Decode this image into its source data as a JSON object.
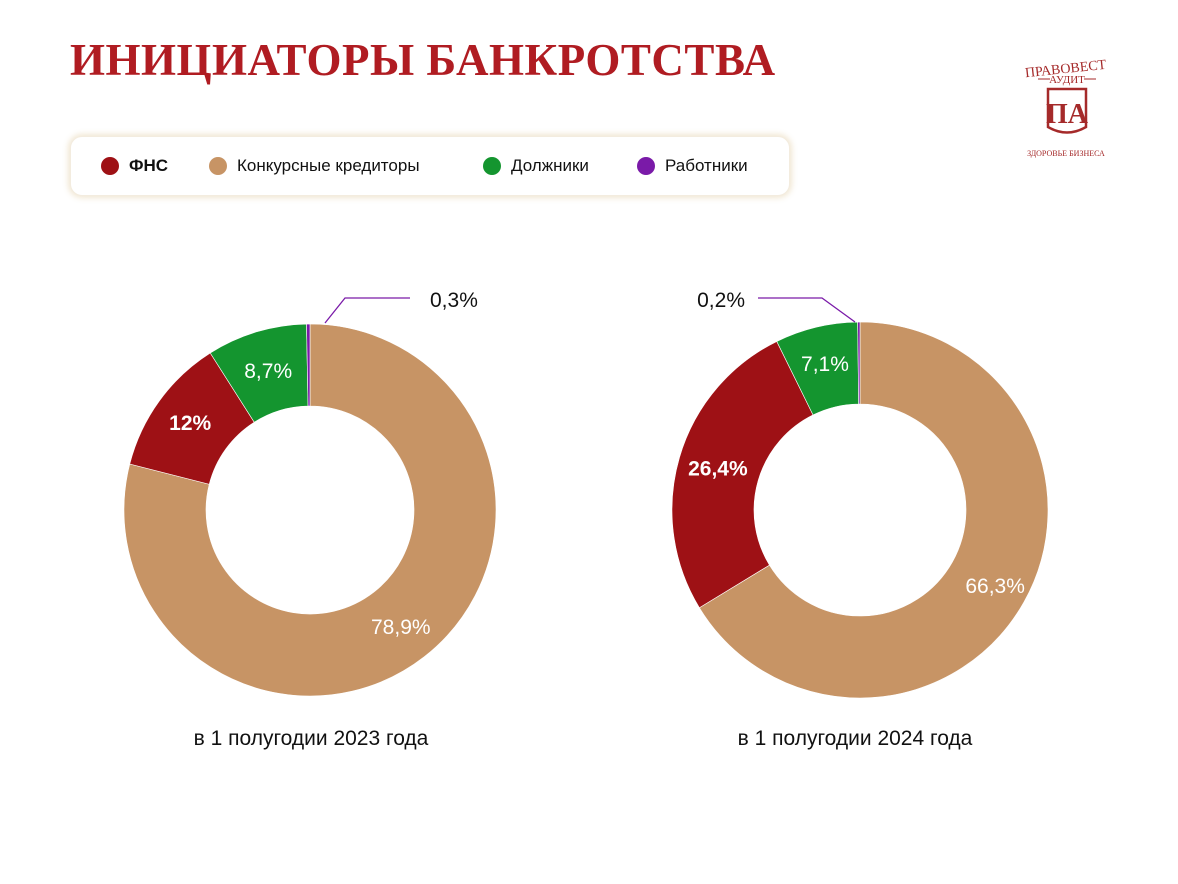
{
  "title": "ИНИЦИАТОРЫ БАНКРОТСТВА",
  "logo": {
    "top_text": "ПРАВОВЕСТ",
    "sub_text": "АУДИТ",
    "monogram": "ПА",
    "bottom_text": "ЗДОРОВЬЕ БИЗНЕСА",
    "color": "#a52a2a"
  },
  "colors": {
    "fns": "#9e1115",
    "creditors": "#c79465",
    "debtors": "#14952f",
    "workers": "#7a1aa8"
  },
  "legend": [
    {
      "label": "ФНС",
      "color": "#9e1115"
    },
    {
      "label": "Конкурсные  кредиторы",
      "color": "#c79465"
    },
    {
      "label": "Должники",
      "color": "#14952f"
    },
    {
      "label": "Работники",
      "color": "#7a1aa8"
    }
  ],
  "chart_data": [
    {
      "type": "pie",
      "caption": "в 1 полугодии 2023 года",
      "categories": [
        "ФНС",
        "Конкурсные кредиторы",
        "Должники",
        "Работники"
      ],
      "values": [
        12,
        78.9,
        8.7,
        0.3
      ],
      "labels": [
        "12%",
        "78,9%",
        "8,7%",
        "0,3%"
      ]
    },
    {
      "type": "pie",
      "caption": "в 1 полугодии 2024 года",
      "categories": [
        "ФНС",
        "Конкурсные кредиторы",
        "Должники",
        "Работники"
      ],
      "values": [
        26.4,
        66.3,
        7.1,
        0.2
      ],
      "labels": [
        "26,4%",
        "66,3%",
        "7,1%",
        "0,2%"
      ]
    }
  ]
}
